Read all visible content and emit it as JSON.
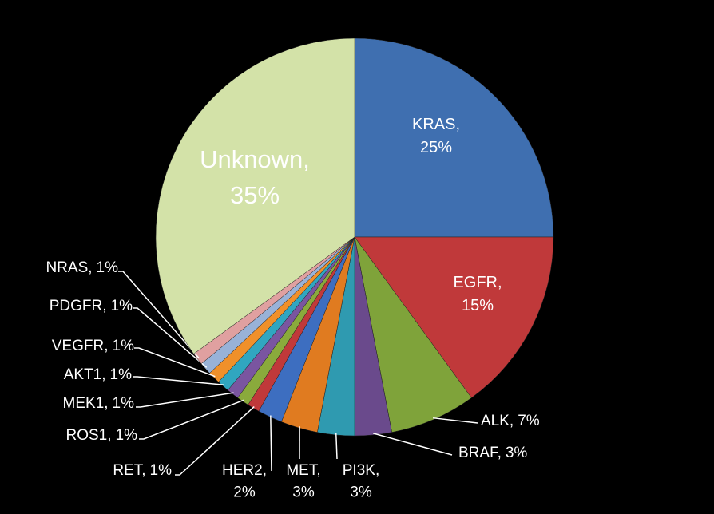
{
  "chart_data": {
    "type": "pie",
    "categories": [
      "KRAS",
      "EGFR",
      "ALK",
      "BRAF",
      "PI3K",
      "MET",
      "HER2",
      "RET",
      "ROS1",
      "MEK1",
      "AKT1",
      "VEGFR",
      "PDGFR",
      "NRAS",
      "Unknown"
    ],
    "values": [
      25,
      15,
      7,
      3,
      3,
      3,
      2,
      1,
      1,
      1,
      1,
      1,
      1,
      1,
      35
    ],
    "value_labels": [
      "25%",
      "15%",
      "7%",
      "3%",
      "3%",
      "3%",
      "2%",
      "1%",
      "1%",
      "1%",
      "1%",
      "1%",
      "1%",
      "1%",
      "35%"
    ],
    "colors": [
      "#3f6fb0",
      "#c0393a",
      "#7fa33a",
      "#6a4a8c",
      "#2f9ab0",
      "#e07b20",
      "#3d6ec0",
      "#c0393a",
      "#8aaa3c",
      "#7a55a0",
      "#30a6c0",
      "#f0902a",
      "#98b2d8",
      "#e0a0a0",
      "#d3e2a8"
    ]
  }
}
